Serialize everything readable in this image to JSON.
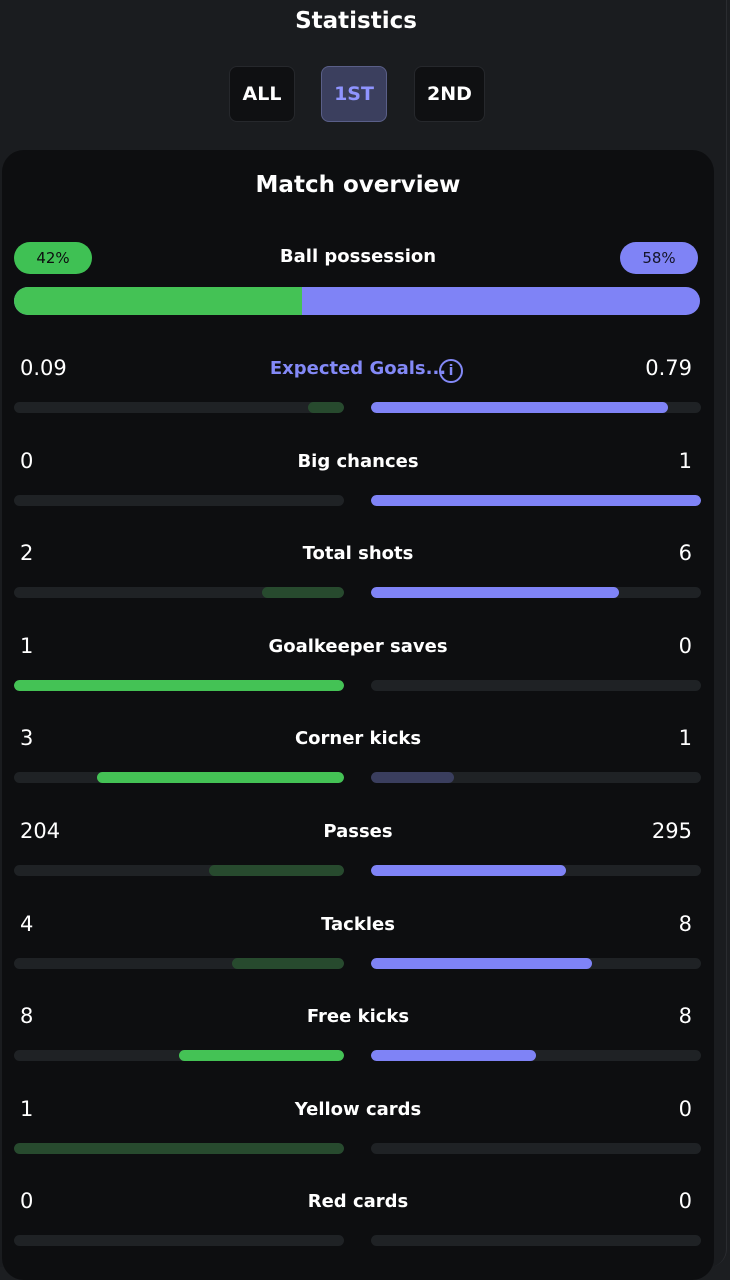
{
  "header": {
    "title": "Statistics"
  },
  "tabs": [
    {
      "label": "ALL",
      "active": false
    },
    {
      "label": "1ST",
      "active": true
    },
    {
      "label": "2ND",
      "active": false
    }
  ],
  "overview": {
    "title": "Match overview",
    "possession": {
      "label": "Ball possession",
      "home": "42%",
      "away": "58%",
      "home_share": 0.42
    },
    "info_icon": "info-icon",
    "stats": [
      {
        "label": "Expected Goals...",
        "home": "0.09",
        "away": "0.79",
        "home_frac": 0.11,
        "away_frac": 0.9,
        "home_color": "#274a2e",
        "away_color": "#7f83f6",
        "home_from_left": false,
        "link": true
      },
      {
        "label": "Big chances",
        "home": "0",
        "away": "1",
        "home_frac": 0.0,
        "away_frac": 1.0,
        "home_color": "#274a2e",
        "away_color": "#7f83f6",
        "home_from_left": false
      },
      {
        "label": "Total shots",
        "home": "2",
        "away": "6",
        "home_frac": 0.25,
        "away_frac": 0.75,
        "home_color": "#274a2e",
        "away_color": "#7f83f6",
        "home_from_left": false
      },
      {
        "label": "Goalkeeper saves",
        "home": "1",
        "away": "0",
        "home_frac": 1.0,
        "away_frac": 0.0,
        "home_color": "#44c255",
        "away_color": "#3a3e5e",
        "home_from_left": false
      },
      {
        "label": "Corner kicks",
        "home": "3",
        "away": "1",
        "home_frac": 0.75,
        "away_frac": 0.25,
        "home_color": "#44c255",
        "away_color": "#3a3e5e",
        "home_from_left": false
      },
      {
        "label": "Passes",
        "home": "204",
        "away": "295",
        "home_frac": 0.41,
        "away_frac": 0.59,
        "home_color": "#274a2e",
        "away_color": "#7f83f6",
        "home_from_left": false
      },
      {
        "label": "Tackles",
        "home": "4",
        "away": "8",
        "home_frac": 0.34,
        "away_frac": 0.67,
        "home_color": "#274a2e",
        "away_color": "#7f83f6",
        "home_from_left": false
      },
      {
        "label": "Free kicks",
        "home": "8",
        "away": "8",
        "home_frac": 0.5,
        "away_frac": 0.5,
        "home_color": "#44c255",
        "away_color": "#7f83f6",
        "home_from_left": false
      },
      {
        "label": "Yellow cards",
        "home": "1",
        "away": "0",
        "home_frac": 1.0,
        "away_frac": 0.0,
        "home_color": "#274a2e",
        "away_color": "#3a3e5e",
        "home_from_left": false
      },
      {
        "label": "Red cards",
        "home": "0",
        "away": "0",
        "home_frac": 0.0,
        "away_frac": 0.0,
        "home_color": "#274a2e",
        "away_color": "#3a3e5e",
        "home_from_left": false
      }
    ]
  },
  "colors": {
    "home": "#44c255",
    "away": "#7f83f6",
    "accent": "#8389f7"
  }
}
